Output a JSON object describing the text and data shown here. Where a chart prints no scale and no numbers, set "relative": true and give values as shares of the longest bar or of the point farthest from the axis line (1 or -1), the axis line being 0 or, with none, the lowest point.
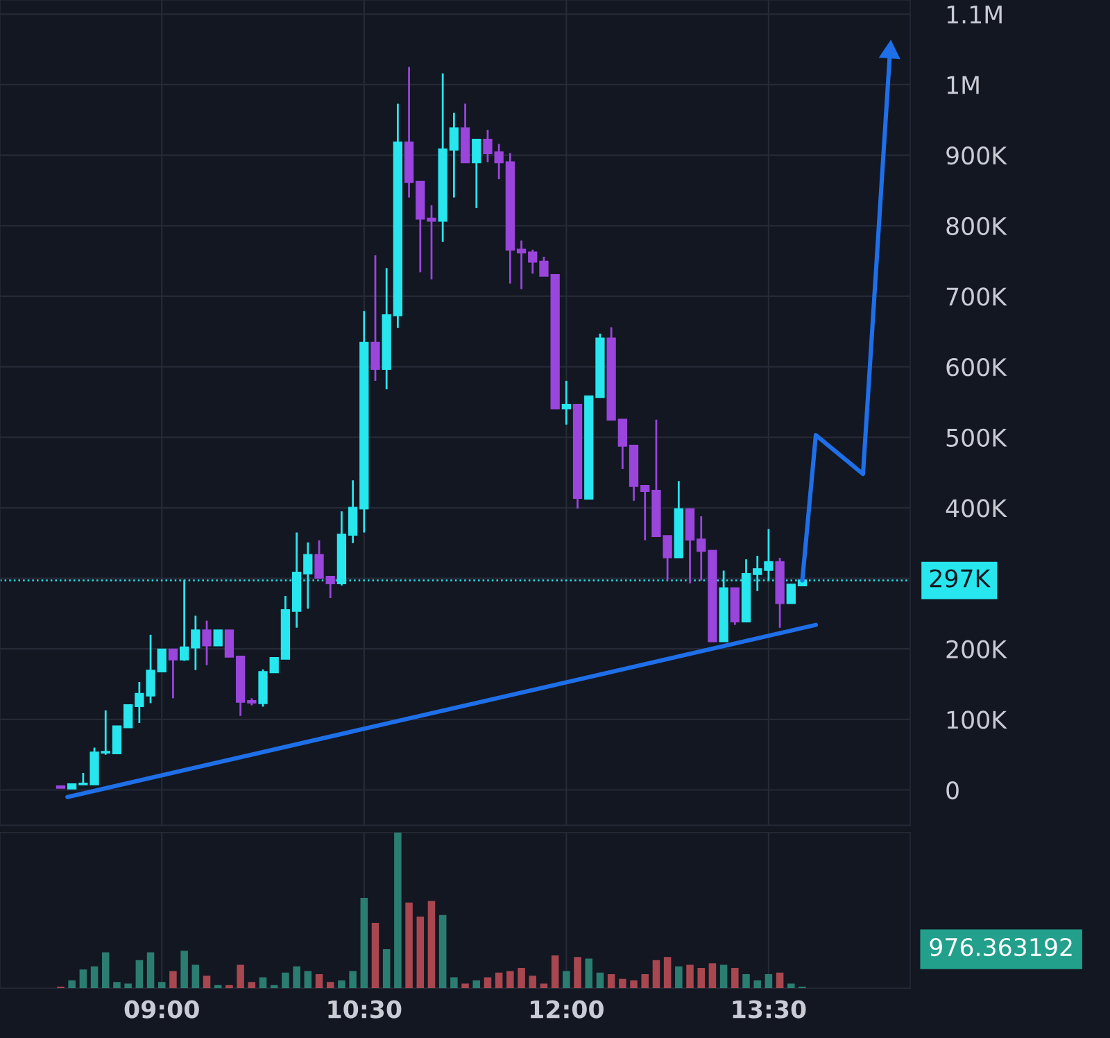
{
  "chart_data": [
    {
      "type": "candlestick",
      "x": [
        8.25,
        8.3333,
        8.4167,
        8.5,
        8.5833,
        8.6667,
        8.75,
        8.8333,
        8.9167,
        9,
        9.0833,
        9.1667,
        9.25,
        9.3333,
        9.4167,
        9.5,
        9.5833,
        9.6667,
        9.75,
        9.8333,
        9.9167,
        10,
        10.0833,
        10.1667,
        10.25,
        10.3333,
        10.4167,
        10.5,
        10.5833,
        10.6667,
        10.75,
        10.8333,
        10.9167,
        11,
        11.0833,
        11.1667,
        11.25,
        11.3333,
        11.4167,
        11.5,
        11.5833,
        11.6667,
        11.75,
        11.8333,
        11.9167,
        12,
        12.0833,
        12.1667,
        12.25,
        12.3333,
        12.4167,
        12.5,
        12.5833,
        12.6667,
        12.75,
        12.8333,
        12.9167,
        13,
        13.0833,
        13.1667,
        13.25,
        13.3333,
        13.4167,
        13.5,
        13.5833,
        13.6667,
        13.75
      ],
      "ohlc": [
        [
          5000,
          5000,
          3000,
          3000
        ],
        [
          2000,
          8000,
          2000,
          8000
        ],
        [
          8000,
          24000,
          7000,
          9000
        ],
        [
          8000,
          60000,
          8000,
          53000
        ],
        [
          53000,
          113000,
          50000,
          54000
        ],
        [
          52000,
          90000,
          52000,
          90000
        ],
        [
          89000,
          120000,
          89000,
          120000
        ],
        [
          119000,
          153000,
          95000,
          136000
        ],
        [
          134000,
          220000,
          123000,
          169000
        ],
        [
          168000,
          199000,
          168000,
          199000
        ],
        [
          199000,
          199000,
          130000,
          185000
        ],
        [
          185000,
          298000,
          183000,
          202000
        ],
        [
          202000,
          247000,
          170000,
          226000
        ],
        [
          226000,
          240000,
          177000,
          205000
        ],
        [
          205000,
          226000,
          205000,
          226000
        ],
        [
          226000,
          226000,
          189000,
          189000
        ],
        [
          189000,
          189000,
          105000,
          125000
        ],
        [
          126000,
          130000,
          120000,
          124000
        ],
        [
          123000,
          171000,
          118000,
          167000
        ],
        [
          167000,
          187000,
          167000,
          187000
        ],
        [
          186000,
          275000,
          186000,
          255000
        ],
        [
          254000,
          365000,
          230000,
          308000
        ],
        [
          307000,
          351000,
          257000,
          333000
        ],
        [
          333000,
          354000,
          301000,
          301000
        ],
        [
          302000,
          302000,
          272000,
          293000
        ],
        [
          293000,
          395000,
          290000,
          362000
        ],
        [
          362000,
          439000,
          350000,
          400000
        ],
        [
          399000,
          679000,
          365000,
          634000
        ],
        [
          634000,
          758000,
          580000,
          597000
        ],
        [
          597000,
          740000,
          568000,
          673000
        ],
        [
          673000,
          973000,
          655000,
          918000
        ],
        [
          918000,
          1025000,
          840000,
          862000
        ],
        [
          862000,
          862000,
          734000,
          810000
        ],
        [
          810000,
          829000,
          724000,
          807000
        ],
        [
          807000,
          1016000,
          777000,
          908000
        ],
        [
          908000,
          960000,
          840000,
          938000
        ],
        [
          938000,
          973000,
          890000,
          890000
        ],
        [
          890000,
          922000,
          825000,
          922000
        ],
        [
          922000,
          936000,
          890000,
          903000
        ],
        [
          904000,
          916000,
          866000,
          890000
        ],
        [
          890000,
          903000,
          718000,
          766000
        ],
        [
          766000,
          779000,
          710000,
          762000
        ],
        [
          762000,
          766000,
          732000,
          749000
        ],
        [
          749000,
          756000,
          729000,
          729000
        ],
        [
          730000,
          730000,
          541000,
          541000
        ],
        [
          541000,
          580000,
          518000,
          546000
        ],
        [
          546000,
          546000,
          399000,
          414000
        ],
        [
          413000,
          558000,
          413000,
          558000
        ],
        [
          557000,
          647000,
          557000,
          640000
        ],
        [
          640000,
          656000,
          525000,
          525000
        ],
        [
          525000,
          525000,
          455000,
          488000
        ],
        [
          488000,
          488000,
          410000,
          431000
        ],
        [
          431000,
          431000,
          354000,
          424000
        ],
        [
          424000,
          525000,
          360000,
          360000
        ],
        [
          360000,
          360000,
          297000,
          330000
        ],
        [
          330000,
          438000,
          330000,
          398000
        ],
        [
          398000,
          398000,
          293000,
          355000
        ],
        [
          355000,
          388000,
          297000,
          339000
        ],
        [
          339000,
          339000,
          211000,
          211000
        ],
        [
          211000,
          311000,
          211000,
          286000
        ],
        [
          286000,
          286000,
          234000,
          239000
        ],
        [
          239000,
          327000,
          239000,
          306000
        ],
        [
          306000,
          332000,
          282000,
          313000
        ],
        [
          312000,
          370000,
          296000,
          323000
        ],
        [
          323000,
          329000,
          230000,
          265000
        ],
        [
          265000,
          291000,
          265000,
          291000
        ],
        [
          290000,
          301000,
          290000,
          297000
        ]
      ],
      "colors": [
        "#9a45dc",
        "#27e6ee",
        "#27e6ee",
        "#27e6ee",
        "#27e6ee",
        "#27e6ee",
        "#27e6ee",
        "#27e6ee",
        "#27e6ee",
        "#27e6ee",
        "#9a45dc",
        "#27e6ee",
        "#27e6ee",
        "#9a45dc",
        "#27e6ee",
        "#9a45dc",
        "#9a45dc",
        "#9a45dc",
        "#27e6ee",
        "#27e6ee",
        "#27e6ee",
        "#27e6ee",
        "#27e6ee",
        "#9a45dc",
        "#9a45dc",
        "#27e6ee",
        "#27e6ee",
        "#27e6ee",
        "#9a45dc",
        "#27e6ee",
        "#27e6ee",
        "#9a45dc",
        "#9a45dc",
        "#9a45dc",
        "#27e6ee",
        "#27e6ee",
        "#9a45dc",
        "#27e6ee",
        "#9a45dc",
        "#9a45dc",
        "#9a45dc",
        "#9a45dc",
        "#9a45dc",
        "#9a45dc",
        "#9a45dc",
        "#27e6ee",
        "#9a45dc",
        "#27e6ee",
        "#27e6ee",
        "#9a45dc",
        "#9a45dc",
        "#9a45dc",
        "#9a45dc",
        "#9a45dc",
        "#9a45dc",
        "#27e6ee",
        "#9a45dc",
        "#9a45dc",
        "#9a45dc",
        "#27e6ee",
        "#9a45dc",
        "#27e6ee",
        "#27e6ee",
        "#27e6ee",
        "#9a45dc",
        "#27e6ee",
        "#27e6ee"
      ],
      "xticks": [
        {
          "value": 9,
          "label": null
        },
        {
          "value": 10.5,
          "label": null
        },
        {
          "value": 12,
          "label": null
        },
        {
          "value": 13.5,
          "label": null
        }
      ],
      "series": [
        {
          "type": "line",
          "color": "#1e6fe8",
          "x": [
            8.3,
            13.85
          ],
          "values": [
            -10000,
            234000
          ]
        },
        {
          "type": "line",
          "color": "#1e6fe8",
          "x": [
            13.75,
            13.85,
            14.2,
            14.4
          ],
          "values": [
            297000,
            503000,
            448000,
            1046000
          ]
        }
      ],
      "xlim": [
        7.8,
        14.55
      ],
      "ylim": [
        -50000,
        1120000
      ],
      "yticks": [
        {
          "value": 0,
          "label": "0"
        },
        {
          "value": 100000,
          "label": "100K"
        },
        {
          "value": 200000,
          "label": "200K"
        },
        {
          "value": 300000,
          "label": null
        },
        {
          "value": 400000,
          "label": "400K"
        },
        {
          "value": 500000,
          "label": "500K"
        },
        {
          "value": 600000,
          "label": "600K"
        },
        {
          "value": 700000,
          "label": "700K"
        },
        {
          "value": 800000,
          "label": "800K"
        },
        {
          "value": 900000,
          "label": "900K"
        },
        {
          "value": 1000000,
          "label": "1M"
        },
        {
          "value": 1100000,
          "label": "1.1M"
        }
      ],
      "ref_lines": [
        {
          "axis": "y",
          "value": 297000,
          "label": "297K",
          "color": "#27e6ee",
          "line_style": "dotted"
        }
      ],
      "grid": true,
      "tick_labels": "y"
    },
    {
      "type": "bar",
      "relative": true,
      "x": [
        8.25,
        8.3333,
        8.4167,
        8.5,
        8.5833,
        8.6667,
        8.75,
        8.8333,
        8.9167,
        9,
        9.0833,
        9.1667,
        9.25,
        9.3333,
        9.4167,
        9.5,
        9.5833,
        9.6667,
        9.75,
        9.8333,
        9.9167,
        10,
        10.0833,
        10.1667,
        10.25,
        10.3333,
        10.4167,
        10.5,
        10.5833,
        10.6667,
        10.75,
        10.8333,
        10.9167,
        11,
        11.0833,
        11.1667,
        11.25,
        11.3333,
        11.4167,
        11.5,
        11.5833,
        11.6667,
        11.75,
        11.8333,
        11.9167,
        12,
        12.0833,
        12.1667,
        12.25,
        12.3333,
        12.4167,
        12.5,
        12.5833,
        12.6667,
        12.75,
        12.8333,
        12.9167,
        13,
        13.0833,
        13.1667,
        13.25,
        13.3333,
        13.4167,
        13.5,
        13.5833,
        13.6667,
        13.75
      ],
      "values": [
        0.01,
        0.05,
        0.12,
        0.14,
        0.23,
        0.04,
        0.03,
        0.18,
        0.23,
        0.04,
        0.11,
        0.24,
        0.15,
        0.08,
        0.02,
        0.02,
        0.15,
        0.04,
        0.07,
        0.02,
        0.1,
        0.14,
        0.11,
        0.09,
        0.04,
        0.05,
        0.11,
        0.58,
        0.42,
        0.25,
        1,
        0.55,
        0.46,
        0.56,
        0.47,
        0.07,
        0.03,
        0.05,
        0.07,
        0.1,
        0.11,
        0.13,
        0.08,
        0.03,
        0.21,
        0.11,
        0.2,
        0.19,
        0.1,
        0.09,
        0.06,
        0.05,
        0.09,
        0.18,
        0.2,
        0.14,
        0.15,
        0.13,
        0.16,
        0.15,
        0.13,
        0.09,
        0.05,
        0.09,
        0.1,
        0.03,
        0.01
      ],
      "colors": [
        "#a8474f",
        "#2b7d72",
        "#2b7d72",
        "#2b7d72",
        "#2b7d72",
        "#2b7d72",
        "#2b7d72",
        "#2b7d72",
        "#2b7d72",
        "#2b7d72",
        "#a8474f",
        "#2b7d72",
        "#2b7d72",
        "#a8474f",
        "#2b7d72",
        "#a8474f",
        "#a8474f",
        "#a8474f",
        "#2b7d72",
        "#2b7d72",
        "#2b7d72",
        "#2b7d72",
        "#2b7d72",
        "#a8474f",
        "#a8474f",
        "#2b7d72",
        "#2b7d72",
        "#2b7d72",
        "#a8474f",
        "#2b7d72",
        "#2b7d72",
        "#a8474f",
        "#a8474f",
        "#a8474f",
        "#2b7d72",
        "#2b7d72",
        "#a8474f",
        "#2b7d72",
        "#a8474f",
        "#a8474f",
        "#a8474f",
        "#a8474f",
        "#a8474f",
        "#a8474f",
        "#a8474f",
        "#2b7d72",
        "#a8474f",
        "#2b7d72",
        "#2b7d72",
        "#a8474f",
        "#a8474f",
        "#a8474f",
        "#a8474f",
        "#a8474f",
        "#a8474f",
        "#2b7d72",
        "#a8474f",
        "#a8474f",
        "#a8474f",
        "#2b7d72",
        "#a8474f",
        "#2b7d72",
        "#2b7d72",
        "#2b7d72",
        "#a8474f",
        "#2b7d72",
        "#2b7d72"
      ],
      "xlim": [
        7.8,
        14.55
      ],
      "xticks": [
        {
          "value": 9,
          "label": "09:00"
        },
        {
          "value": 10.5,
          "label": "10:30"
        },
        {
          "value": 12,
          "label": "12:00"
        },
        {
          "value": 13.5,
          "label": "13:30"
        }
      ],
      "annotations": [
        "976.363192"
      ],
      "grid": "x",
      "tick_labels": "x"
    }
  ]
}
